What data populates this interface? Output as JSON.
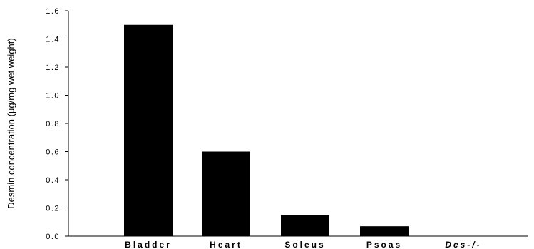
{
  "chart_data": {
    "type": "bar",
    "title": "",
    "xlabel": "",
    "ylabel": "Desmin concentration (µg/mg wet weight)",
    "categories": [
      "Bladder",
      "Heart",
      "Soleus",
      "Psoas",
      "Des-/-"
    ],
    "italic_categories": [
      "Des-/-"
    ],
    "values": [
      1.5,
      0.6,
      0.15,
      0.07,
      0.0
    ],
    "ylim": [
      0,
      1.6
    ],
    "yticks": [
      "0.0",
      "0.2",
      "0.4",
      "0.6",
      "0.8",
      "1.0",
      "1.2",
      "1.4",
      "1.6"
    ],
    "bar_color": "#000000",
    "grid": false,
    "legend": "none"
  }
}
